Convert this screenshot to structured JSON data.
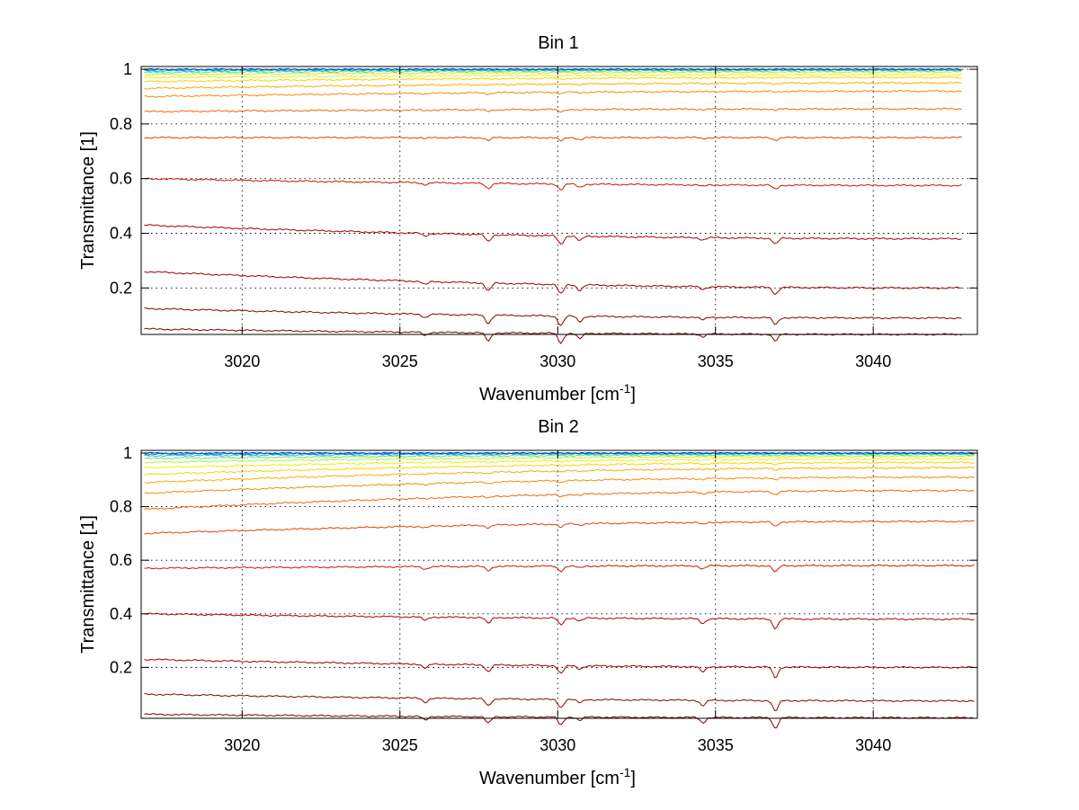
{
  "chart_data": [
    {
      "type": "line",
      "title": "Bin 1",
      "xlabel": "Wavenumber [cm",
      "xlabel_sup": "-1",
      "xlabel_end": "]",
      "ylabel": "Transmittance [1]",
      "xlim": [
        3016.8,
        3043.3
      ],
      "ylim": [
        0.03,
        1.01
      ],
      "xticks": [
        3020,
        3025,
        3030,
        3035,
        3040
      ],
      "yticks": [
        0.2,
        0.4,
        0.6,
        0.8,
        1
      ],
      "ytick_labels": [
        "0.2",
        "0.4",
        "0.6",
        "0.8",
        "1"
      ],
      "grid": true,
      "x_range": [
        3016.9,
        3042.8
      ],
      "dips": [
        {
          "x": 3025.8,
          "depth": 0.012
        },
        {
          "x": 3027.8,
          "depth": 0.03
        },
        {
          "x": 3030.1,
          "depth": 0.035
        },
        {
          "x": 3030.7,
          "depth": 0.02
        },
        {
          "x": 3034.6,
          "depth": 0.01
        },
        {
          "x": 3036.9,
          "depth": 0.025
        }
      ],
      "series": [
        {
          "start": 0.05,
          "end": 0.03,
          "color": "#7f0000"
        },
        {
          "start": 0.125,
          "end": 0.09,
          "color": "#8b0000"
        },
        {
          "start": 0.26,
          "end": 0.2,
          "color": "#990000"
        },
        {
          "start": 0.43,
          "end": 0.38,
          "color": "#a80000"
        },
        {
          "start": 0.6,
          "end": 0.575,
          "color": "#c41a00"
        },
        {
          "start": 0.75,
          "end": 0.75,
          "color": "#dd4400"
        },
        {
          "start": 0.845,
          "end": 0.855,
          "color": "#ee6600"
        },
        {
          "start": 0.9,
          "end": 0.92,
          "color": "#f58a00"
        },
        {
          "start": 0.93,
          "end": 0.95,
          "color": "#ffaa00"
        },
        {
          "start": 0.955,
          "end": 0.97,
          "color": "#ffd000"
        },
        {
          "start": 0.97,
          "end": 0.98,
          "color": "#f0f000"
        },
        {
          "start": 0.98,
          "end": 0.99,
          "color": "#b0f040"
        },
        {
          "start": 0.988,
          "end": 0.995,
          "color": "#60e080"
        },
        {
          "start": 0.994,
          "end": 0.998,
          "color": "#20c0c0"
        },
        {
          "start": 0.998,
          "end": 1.0,
          "color": "#0080ff"
        },
        {
          "start": 1.0,
          "end": 1.0,
          "color": "#0040c0"
        }
      ]
    },
    {
      "type": "line",
      "title": "Bin 2",
      "xlabel": "Wavenumber [cm",
      "xlabel_sup": "-1",
      "xlabel_end": "]",
      "ylabel": "Transmittance [1]",
      "xlim": [
        3016.8,
        3043.3
      ],
      "ylim": [
        0.01,
        1.01
      ],
      "xticks": [
        3020,
        3025,
        3030,
        3035,
        3040
      ],
      "yticks": [
        0.2,
        0.4,
        0.6,
        0.8,
        1
      ],
      "ytick_labels": [
        "0.2",
        "0.4",
        "0.6",
        "0.8",
        "1"
      ],
      "grid": true,
      "x_range": [
        3016.9,
        3043.2
      ],
      "dips": [
        {
          "x": 3025.8,
          "depth": 0.015
        },
        {
          "x": 3027.8,
          "depth": 0.025
        },
        {
          "x": 3030.1,
          "depth": 0.03
        },
        {
          "x": 3030.7,
          "depth": 0.012
        },
        {
          "x": 3034.6,
          "depth": 0.02
        },
        {
          "x": 3036.9,
          "depth": 0.04
        }
      ],
      "series": [
        {
          "start": 0.025,
          "end": 0.012,
          "color": "#7f0000"
        },
        {
          "start": 0.1,
          "end": 0.075,
          "color": "#8b0000"
        },
        {
          "start": 0.23,
          "end": 0.2,
          "color": "#990000"
        },
        {
          "start": 0.4,
          "end": 0.38,
          "color": "#a80000"
        },
        {
          "start": 0.57,
          "end": 0.58,
          "color": "#c41a00"
        },
        {
          "start": 0.7,
          "end": 0.745,
          "color": "#dd4400"
        },
        {
          "start": 0.79,
          "end": 0.86,
          "color": "#ee6600"
        },
        {
          "start": 0.85,
          "end": 0.91,
          "color": "#f58a00"
        },
        {
          "start": 0.89,
          "end": 0.945,
          "color": "#ffaa00"
        },
        {
          "start": 0.92,
          "end": 0.965,
          "color": "#ffd000"
        },
        {
          "start": 0.945,
          "end": 0.978,
          "color": "#f0f000"
        },
        {
          "start": 0.965,
          "end": 0.988,
          "color": "#b0f040"
        },
        {
          "start": 0.98,
          "end": 0.994,
          "color": "#60e080"
        },
        {
          "start": 0.99,
          "end": 0.998,
          "color": "#20c0c0"
        },
        {
          "start": 0.996,
          "end": 1.0,
          "color": "#0080ff"
        },
        {
          "start": 1.0,
          "end": 1.0,
          "color": "#0040c0"
        }
      ]
    }
  ]
}
